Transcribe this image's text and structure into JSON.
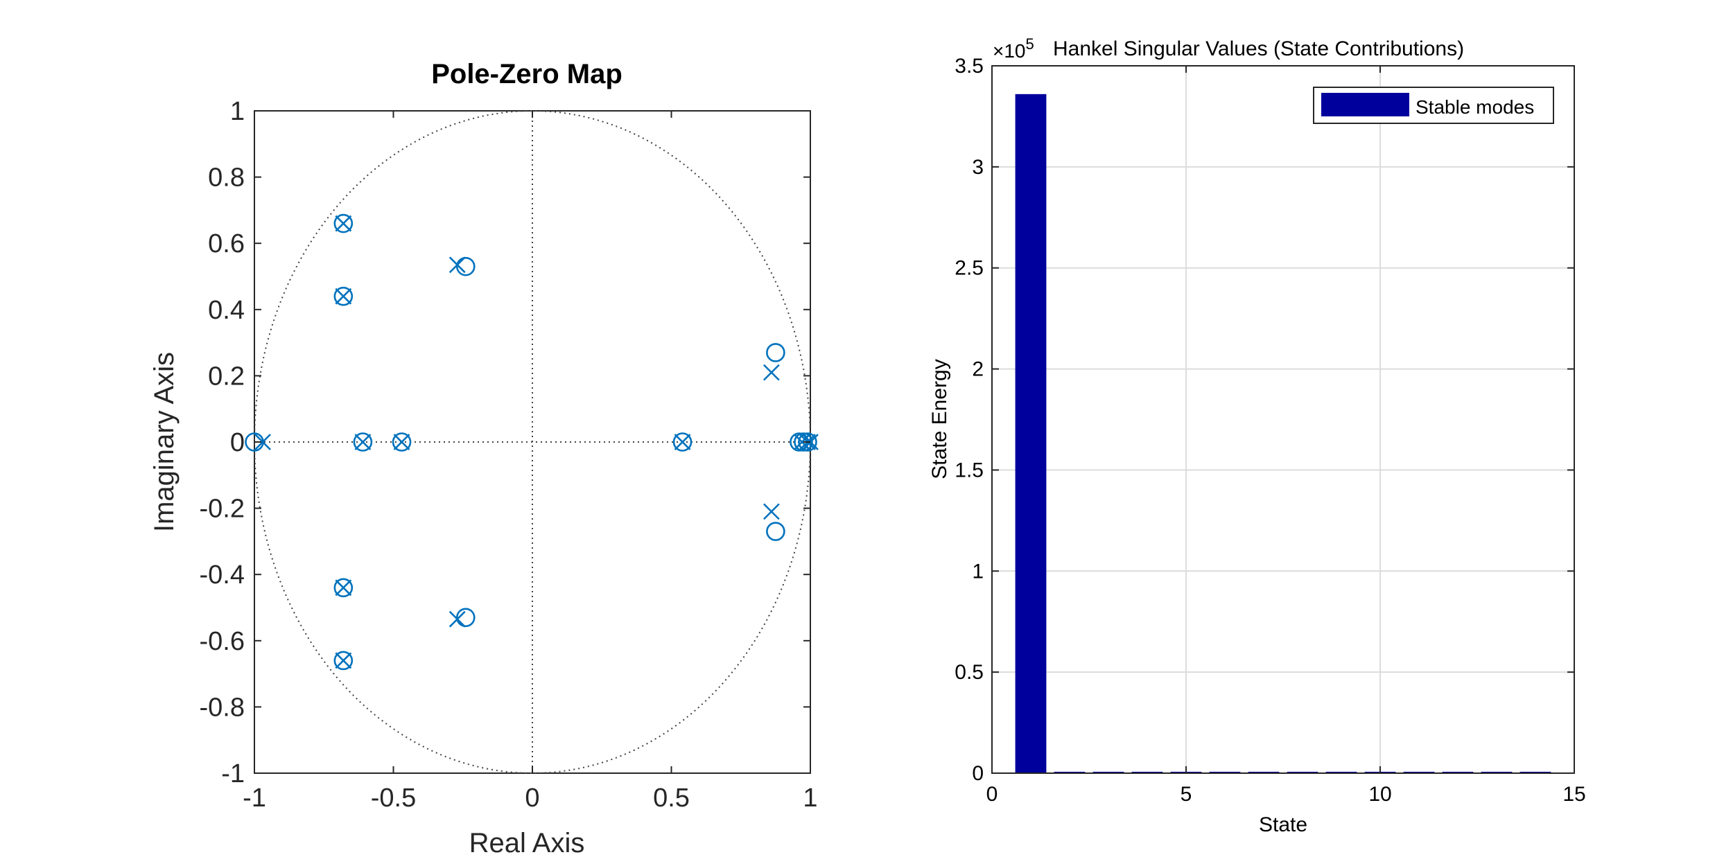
{
  "chart_data": [
    {
      "type": "scatter",
      "title": "Pole-Zero Map",
      "xlabel": "Real Axis",
      "ylabel": "Imaginary Axis",
      "xlim": [
        -1,
        1
      ],
      "ylim": [
        -1,
        1
      ],
      "xticks": [
        "-1",
        "-0.5",
        "0",
        "0.5",
        "1"
      ],
      "yticks": [
        "-1",
        "-0.8",
        "-0.6",
        "-0.4",
        "-0.2",
        "0",
        "0.2",
        "0.4",
        "0.6",
        "0.8",
        "1"
      ],
      "unit_circle": true,
      "grid": false,
      "color": "#0072BD",
      "series": [
        {
          "marker": "x",
          "x": [
            -0.68,
            -0.68,
            -0.68,
            -0.68,
            -0.27,
            -0.27,
            -0.97,
            -0.61,
            -0.47,
            0.54,
            0.86,
            0.86,
            0.97,
            0.99,
            1.0
          ],
          "y": [
            0.66,
            0.44,
            -0.44,
            -0.66,
            0.535,
            -0.535,
            0,
            0,
            0,
            0,
            0.21,
            -0.21,
            0,
            0,
            0
          ]
        },
        {
          "marker": "o",
          "x": [
            -0.68,
            -0.68,
            -0.68,
            -0.68,
            -0.24,
            -0.24,
            -1.0,
            -0.61,
            -0.47,
            0.54,
            0.875,
            0.875,
            0.96,
            0.975,
            0.99
          ],
          "y": [
            0.66,
            0.44,
            -0.44,
            -0.66,
            0.53,
            -0.53,
            0,
            0,
            0,
            0,
            0.27,
            -0.27,
            0,
            0,
            0
          ]
        }
      ]
    },
    {
      "type": "bar",
      "title": "Hankel Singular Values (State Contributions)",
      "exponent_label": "×10",
      "exponent": "5",
      "xlabel": "State",
      "ylabel": "State Energy",
      "xlim": [
        0,
        15
      ],
      "ylim": [
        0,
        3.5
      ],
      "xticks": [
        "0",
        "5",
        "10",
        "15"
      ],
      "yticks": [
        "0",
        "0.5",
        "1",
        "1.5",
        "2",
        "2.5",
        "3",
        "3.5"
      ],
      "grid": true,
      "legend": "top-right",
      "color": "#00009C",
      "series": [
        {
          "name": "Stable modes",
          "x": [
            1,
            2,
            3,
            4,
            5,
            6,
            7,
            8,
            9,
            10,
            11,
            12,
            13,
            14
          ],
          "values": [
            3.36,
            0.004,
            0.003,
            0.002,
            0.002,
            0.001,
            0.001,
            0.001,
            0.001,
            0.001,
            0.0005,
            0.0005,
            0.0003,
            0.0002
          ]
        }
      ]
    }
  ]
}
